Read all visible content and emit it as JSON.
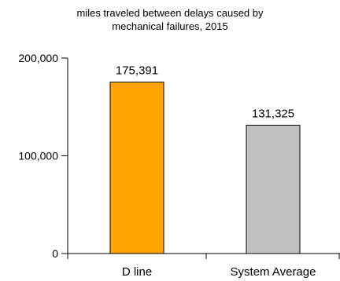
{
  "chart_data": {
    "type": "bar",
    "title_lines": [
      "miles traveled between delays caused by",
      "mechanical failures, 2015"
    ],
    "categories": [
      "D line",
      "System Average"
    ],
    "values": [
      175391,
      131325
    ],
    "value_labels": [
      "175,391",
      "131,325"
    ],
    "ylim": [
      0,
      200000
    ],
    "yticks": [
      0,
      100000,
      200000
    ],
    "ytick_labels": [
      "0",
      "100,000",
      "200,000"
    ],
    "colors": [
      "#FFA500",
      "#C0C0C0"
    ],
    "bar_stroke": "#000000",
    "grid": false,
    "legend": "none"
  }
}
